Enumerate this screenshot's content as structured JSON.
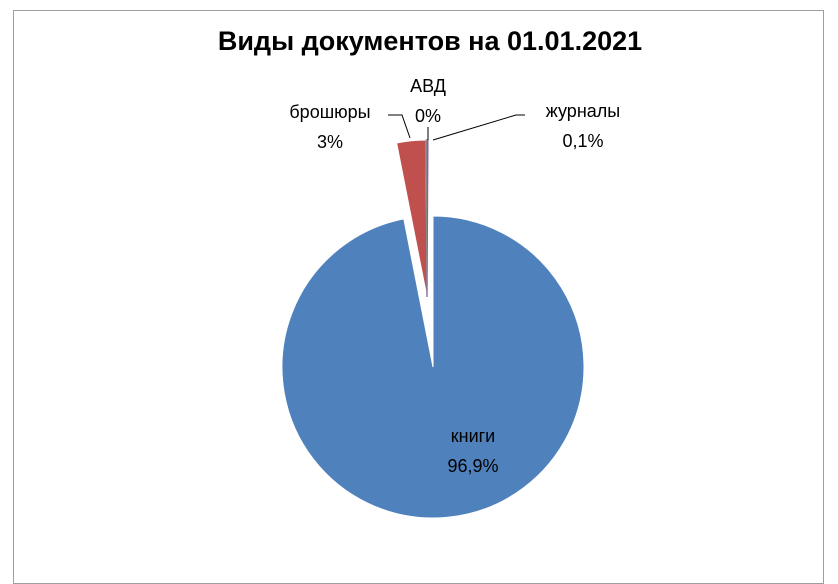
{
  "chart_data": {
    "type": "pie",
    "title": "Виды документов на 01.01.2021",
    "slices": [
      {
        "name": "книги",
        "value": 96.9,
        "label": "96,9%",
        "color": "#4f81bd"
      },
      {
        "name": "брошюры",
        "value": 3.0,
        "label": "3%",
        "color": "#c0504d"
      },
      {
        "name": "АВД",
        "value": 0.0,
        "label": "0%",
        "color": "#9bbb59"
      },
      {
        "name": "журналы",
        "value": 0.1,
        "label": "0,1%",
        "color": "#8064a2"
      }
    ],
    "legend": "none"
  }
}
